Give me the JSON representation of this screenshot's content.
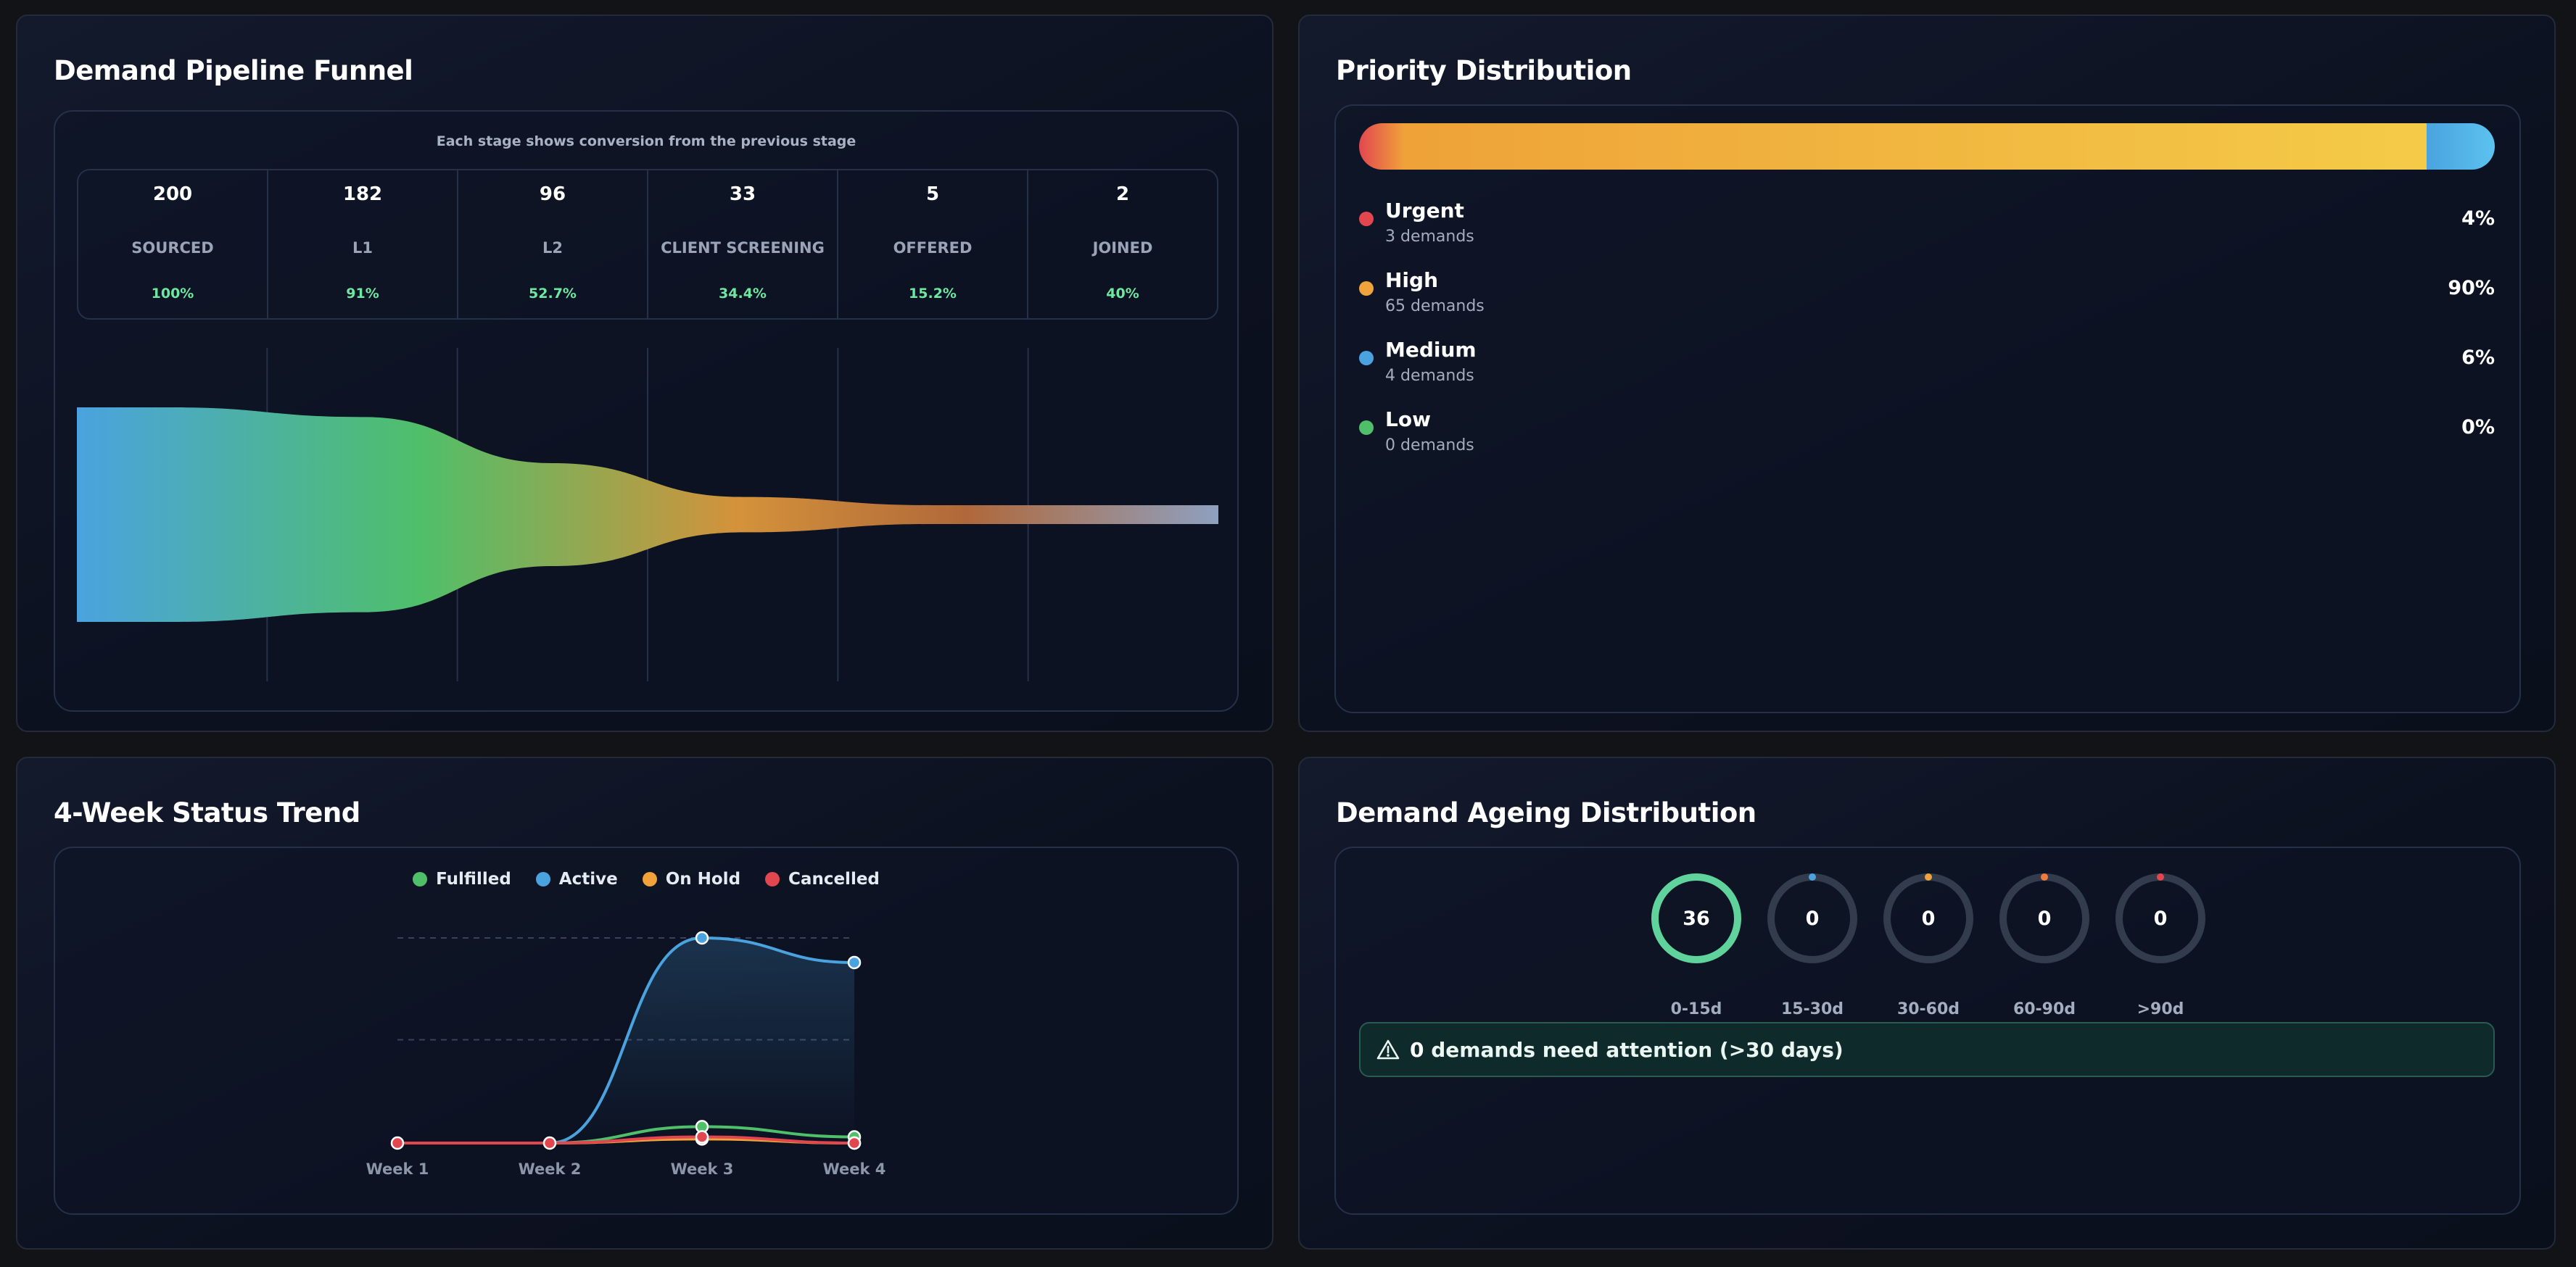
{
  "funnel": {
    "title": "Demand Pipeline Funnel",
    "caption": "Each stage shows conversion from the previous stage",
    "stages": [
      {
        "count": "200",
        "label": "SOURCED",
        "pct": "100%",
        "value": 200
      },
      {
        "count": "182",
        "label": "L1",
        "pct": "91%",
        "value": 182
      },
      {
        "count": "96",
        "label": "L2",
        "pct": "52.7%",
        "value": 96
      },
      {
        "count": "33",
        "label": "CLIENT SCREENING",
        "pct": "34.4%",
        "value": 33
      },
      {
        "count": "5",
        "label": "OFFERED",
        "pct": "15.2%",
        "value": 5
      },
      {
        "count": "2",
        "label": "JOINED",
        "pct": "40%",
        "value": 2
      }
    ],
    "colors": [
      "#4aa3df",
      "#4fbf6a",
      "#d4923a",
      "#8ea0c0"
    ]
  },
  "priority": {
    "title": "Priority Distribution",
    "items": [
      {
        "name": "Urgent",
        "sub": "3 demands",
        "pct": "4%",
        "share": 4,
        "color": "#e2474f"
      },
      {
        "name": "High",
        "sub": "65 demands",
        "pct": "90%",
        "share": 90,
        "color": "#f0a33a"
      },
      {
        "name": "Medium",
        "sub": "4 demands",
        "pct": "6%",
        "share": 6,
        "color": "#4aa3df"
      },
      {
        "name": "Low",
        "sub": "0 demands",
        "pct": "0%",
        "share": 0,
        "color": "#4fbf6a"
      }
    ]
  },
  "trend": {
    "title": "4-Week Status Trend",
    "legend": [
      {
        "label": "Fulfilled",
        "color": "#4fbf6a"
      },
      {
        "label": "Active",
        "color": "#4aa3df"
      },
      {
        "label": "On Hold",
        "color": "#f0a33a"
      },
      {
        "label": "Cancelled",
        "color": "#e2474f"
      }
    ]
  },
  "ageing": {
    "title": "Demand Ageing Distribution",
    "buckets": [
      {
        "value": "36",
        "label": "0-15d",
        "color": "#5fd39b",
        "full": true
      },
      {
        "value": "0",
        "label": "15-30d",
        "color": "#4aa3df",
        "full": false
      },
      {
        "value": "0",
        "label": "30-60d",
        "color": "#f0a33a",
        "full": false
      },
      {
        "value": "0",
        "label": "60-90d",
        "color": "#f07a3a",
        "full": false
      },
      {
        "value": "0",
        "label": ">90d",
        "color": "#e2474f",
        "full": false
      }
    ],
    "alert": {
      "count": "0",
      "text": "demands need attention (>30 days)"
    }
  },
  "chart_data": {
    "type": "line",
    "categories": [
      "Week 1",
      "Week 2",
      "Week 3",
      "Week 4"
    ],
    "series": [
      {
        "name": "Fulfilled",
        "values": [
          0,
          0,
          4,
          1.5
        ]
      },
      {
        "name": "Active",
        "values": [
          0,
          0,
          50,
          44
        ]
      },
      {
        "name": "On Hold",
        "values": [
          0,
          0,
          1,
          0
        ]
      },
      {
        "name": "Cancelled",
        "values": [
          0,
          0,
          1.5,
          0
        ]
      }
    ],
    "ylim": [
      0,
      50
    ],
    "grid": true,
    "legend": "top"
  }
}
